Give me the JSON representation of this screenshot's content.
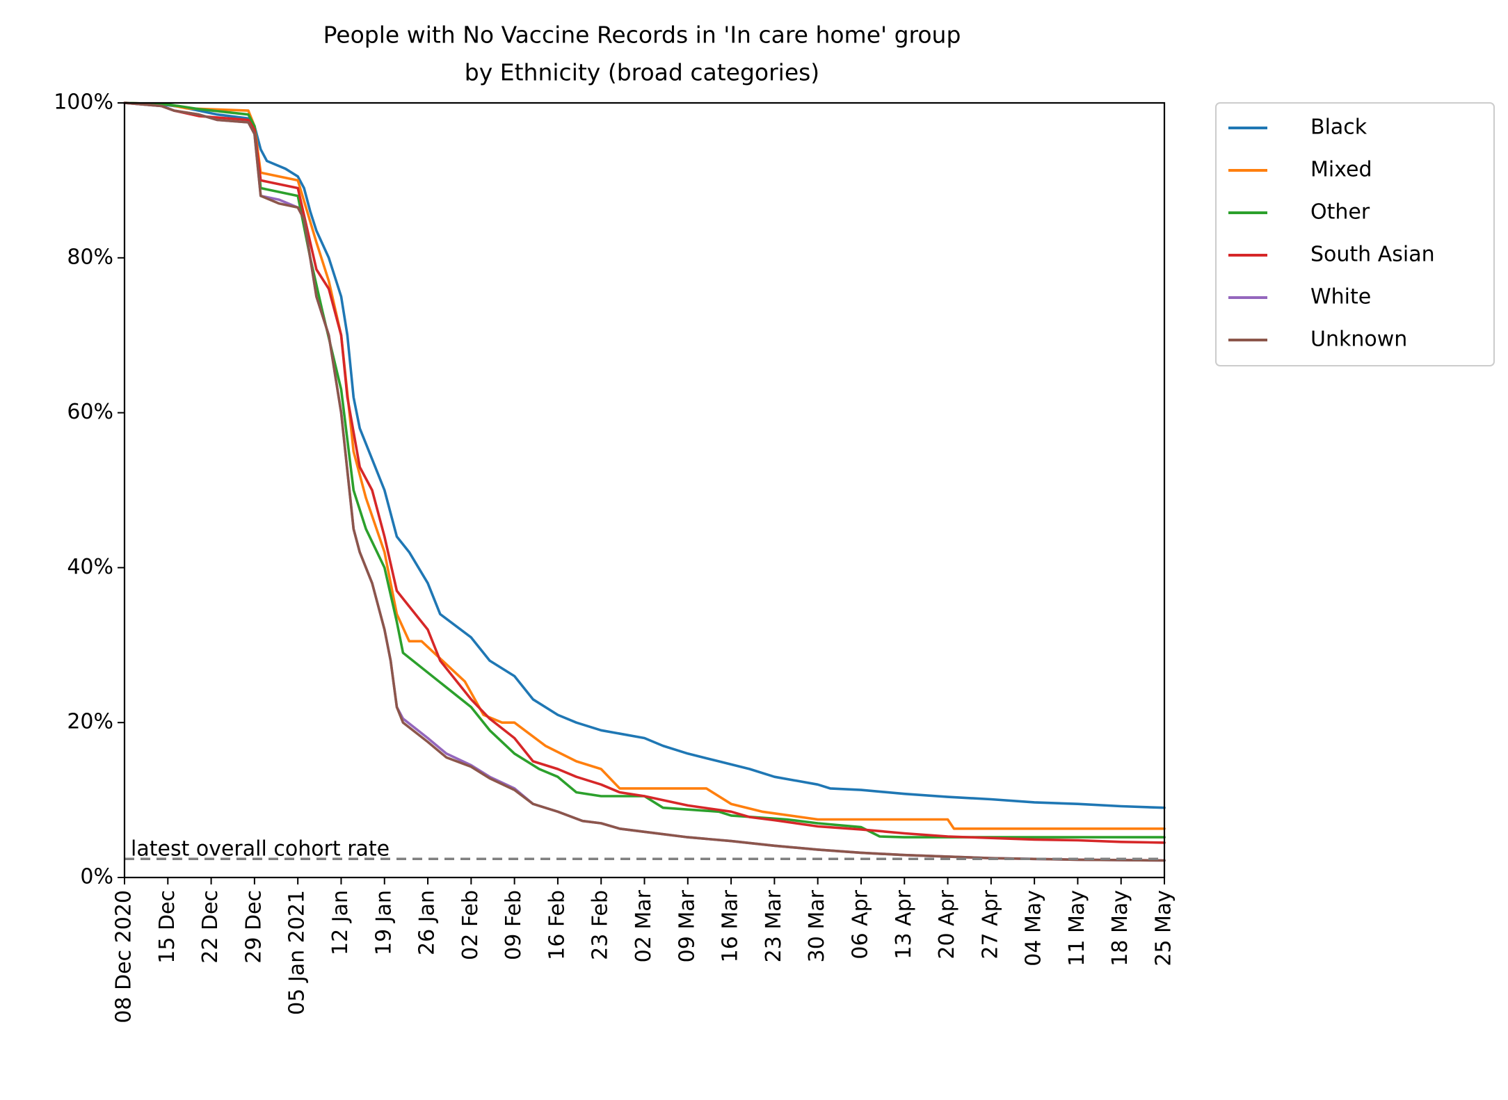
{
  "chart_data": {
    "type": "line",
    "title_lines": [
      "People with No Vaccine Records in 'In care home' group",
      "by Ethnicity (broad categories)"
    ],
    "xlabel": "",
    "ylabel": "",
    "ylim": [
      0,
      100
    ],
    "y_ticks": [
      0,
      20,
      40,
      60,
      80,
      100
    ],
    "y_tick_labels": [
      "0%",
      "20%",
      "40%",
      "60%",
      "80%",
      "100%"
    ],
    "xlim": [
      "2020-12-08",
      "2021-05-25"
    ],
    "x_tick_dates": [
      "2020-12-08",
      "2020-12-15",
      "2020-12-22",
      "2020-12-29",
      "2021-01-05",
      "2021-01-12",
      "2021-01-19",
      "2021-01-26",
      "2021-02-02",
      "2021-02-09",
      "2021-02-16",
      "2021-02-23",
      "2021-03-02",
      "2021-03-09",
      "2021-03-16",
      "2021-03-23",
      "2021-03-30",
      "2021-04-06",
      "2021-04-13",
      "2021-04-20",
      "2021-04-27",
      "2021-05-04",
      "2021-05-11",
      "2021-05-18",
      "2021-05-25"
    ],
    "x_tick_labels": [
      "08 Dec 2020",
      "15 Dec",
      "22 Dec",
      "29 Dec",
      "05 Jan 2021",
      "12 Jan",
      "19 Jan",
      "26 Jan",
      "02 Feb",
      "09 Feb",
      "16 Feb",
      "23 Feb",
      "02 Mar",
      "09 Mar",
      "16 Mar",
      "23 Mar",
      "30 Mar",
      "06 Apr",
      "13 Apr",
      "20 Apr",
      "27 Apr",
      "04 May",
      "11 May",
      "18 May",
      "25 May"
    ],
    "grid": false,
    "legend_placement": "outside-top-right",
    "reference_line": {
      "label": "latest overall cohort rate",
      "value": 2.4,
      "color": "#808080",
      "style": "dashed"
    },
    "series": [
      {
        "name": "Black",
        "color": "#1f77b4",
        "points": [
          [
            "2020-12-08",
            100
          ],
          [
            "2020-12-14",
            99.8
          ],
          [
            "2020-12-17",
            99.5
          ],
          [
            "2020-12-20",
            99
          ],
          [
            "2020-12-23",
            98.5
          ],
          [
            "2020-12-28",
            98
          ],
          [
            "2020-12-29",
            97
          ],
          [
            "2020-12-30",
            94
          ],
          [
            "2020-12-31",
            92.5
          ],
          [
            "2021-01-03",
            91.5
          ],
          [
            "2021-01-05",
            90.5
          ],
          [
            "2021-01-06",
            89
          ],
          [
            "2021-01-07",
            86
          ],
          [
            "2021-01-08",
            83.5
          ],
          [
            "2021-01-10",
            80
          ],
          [
            "2021-01-12",
            75
          ],
          [
            "2021-01-13",
            70
          ],
          [
            "2021-01-14",
            62
          ],
          [
            "2021-01-15",
            58
          ],
          [
            "2021-01-17",
            54
          ],
          [
            "2021-01-19",
            50
          ],
          [
            "2021-01-21",
            44
          ],
          [
            "2021-01-23",
            42
          ],
          [
            "2021-01-26",
            38
          ],
          [
            "2021-01-28",
            34
          ],
          [
            "2021-02-02",
            31
          ],
          [
            "2021-02-05",
            28
          ],
          [
            "2021-02-09",
            26
          ],
          [
            "2021-02-12",
            23
          ],
          [
            "2021-02-16",
            21
          ],
          [
            "2021-02-19",
            20
          ],
          [
            "2021-02-23",
            19
          ],
          [
            "2021-03-02",
            18
          ],
          [
            "2021-03-05",
            17
          ],
          [
            "2021-03-09",
            16
          ],
          [
            "2021-03-14",
            15
          ],
          [
            "2021-03-19",
            14
          ],
          [
            "2021-03-23",
            13
          ],
          [
            "2021-03-30",
            12
          ],
          [
            "2021-04-01",
            11.5
          ],
          [
            "2021-04-06",
            11.3
          ],
          [
            "2021-04-13",
            10.8
          ],
          [
            "2021-04-20",
            10.4
          ],
          [
            "2021-04-27",
            10.1
          ],
          [
            "2021-05-04",
            9.7
          ],
          [
            "2021-05-11",
            9.5
          ],
          [
            "2021-05-18",
            9.2
          ],
          [
            "2021-05-25",
            9.0
          ]
        ]
      },
      {
        "name": "Mixed",
        "color": "#ff7f0e",
        "points": [
          [
            "2020-12-08",
            100
          ],
          [
            "2020-12-15",
            99.8
          ],
          [
            "2020-12-18",
            99.3
          ],
          [
            "2020-12-28",
            99
          ],
          [
            "2020-12-29",
            97
          ],
          [
            "2020-12-30",
            91
          ],
          [
            "2021-01-05",
            90
          ],
          [
            "2021-01-08",
            82
          ],
          [
            "2021-01-10",
            77
          ],
          [
            "2021-01-12",
            70
          ],
          [
            "2021-01-14",
            55
          ],
          [
            "2021-01-16",
            49
          ],
          [
            "2021-01-19",
            42
          ],
          [
            "2021-01-21",
            34
          ],
          [
            "2021-01-23",
            30.5
          ],
          [
            "2021-01-25",
            30.5
          ],
          [
            "2021-02-01",
            25.3
          ],
          [
            "2021-02-04",
            21
          ],
          [
            "2021-02-07",
            20
          ],
          [
            "2021-02-09",
            20
          ],
          [
            "2021-02-14",
            17
          ],
          [
            "2021-02-19",
            15
          ],
          [
            "2021-02-23",
            14
          ],
          [
            "2021-02-26",
            11.5
          ],
          [
            "2021-03-12",
            11.5
          ],
          [
            "2021-03-16",
            9.5
          ],
          [
            "2021-03-21",
            8.5
          ],
          [
            "2021-03-30",
            7.5
          ],
          [
            "2021-04-20",
            7.5
          ],
          [
            "2021-04-21",
            6.3
          ],
          [
            "2021-05-25",
            6.3
          ]
        ]
      },
      {
        "name": "Other",
        "color": "#2ca02c",
        "points": [
          [
            "2020-12-08",
            100
          ],
          [
            "2020-12-15",
            99.8
          ],
          [
            "2020-12-20",
            99.2
          ],
          [
            "2020-12-28",
            98.5
          ],
          [
            "2020-12-29",
            97
          ],
          [
            "2020-12-30",
            89
          ],
          [
            "2021-01-05",
            88
          ],
          [
            "2021-01-07",
            80
          ],
          [
            "2021-01-09",
            73
          ],
          [
            "2021-01-12",
            63
          ],
          [
            "2021-01-14",
            50
          ],
          [
            "2021-01-16",
            45
          ],
          [
            "2021-01-19",
            40
          ],
          [
            "2021-01-21",
            33
          ],
          [
            "2021-01-22",
            29
          ],
          [
            "2021-02-02",
            22
          ],
          [
            "2021-02-05",
            19
          ],
          [
            "2021-02-09",
            16
          ],
          [
            "2021-02-13",
            14
          ],
          [
            "2021-02-16",
            13
          ],
          [
            "2021-02-19",
            11
          ],
          [
            "2021-02-23",
            10.5
          ],
          [
            "2021-03-02",
            10.5
          ],
          [
            "2021-03-05",
            9
          ],
          [
            "2021-03-14",
            8.5
          ],
          [
            "2021-03-16",
            8
          ],
          [
            "2021-03-25",
            7.5
          ],
          [
            "2021-03-30",
            7
          ],
          [
            "2021-04-06",
            6.5
          ],
          [
            "2021-04-09",
            5.3
          ],
          [
            "2021-04-13",
            5.2
          ],
          [
            "2021-05-25",
            5.2
          ]
        ]
      },
      {
        "name": "South Asian",
        "color": "#d62728",
        "points": [
          [
            "2020-12-08",
            100
          ],
          [
            "2020-12-14",
            99.6
          ],
          [
            "2020-12-16",
            99
          ],
          [
            "2020-12-20",
            98.3
          ],
          [
            "2020-12-28",
            97.8
          ],
          [
            "2020-12-29",
            96.5
          ],
          [
            "2020-12-30",
            90
          ],
          [
            "2021-01-05",
            89
          ],
          [
            "2021-01-07",
            82
          ],
          [
            "2021-01-08",
            78.5
          ],
          [
            "2021-01-10",
            76
          ],
          [
            "2021-01-12",
            70
          ],
          [
            "2021-01-13",
            62
          ],
          [
            "2021-01-15",
            53
          ],
          [
            "2021-01-17",
            50
          ],
          [
            "2021-01-19",
            44
          ],
          [
            "2021-01-21",
            37
          ],
          [
            "2021-01-23",
            35
          ],
          [
            "2021-01-26",
            32
          ],
          [
            "2021-01-28",
            28
          ],
          [
            "2021-01-30",
            26
          ],
          [
            "2021-02-02",
            23
          ],
          [
            "2021-02-05",
            20.5
          ],
          [
            "2021-02-09",
            18
          ],
          [
            "2021-02-12",
            15
          ],
          [
            "2021-02-16",
            14
          ],
          [
            "2021-02-19",
            13
          ],
          [
            "2021-02-23",
            12
          ],
          [
            "2021-02-26",
            11
          ],
          [
            "2021-03-02",
            10.5
          ],
          [
            "2021-03-09",
            9.3
          ],
          [
            "2021-03-16",
            8.5
          ],
          [
            "2021-03-19",
            7.8
          ],
          [
            "2021-03-23",
            7.4
          ],
          [
            "2021-03-30",
            6.6
          ],
          [
            "2021-04-06",
            6.2
          ],
          [
            "2021-04-13",
            5.7
          ],
          [
            "2021-04-20",
            5.3
          ],
          [
            "2021-04-27",
            5.1
          ],
          [
            "2021-05-04",
            4.9
          ],
          [
            "2021-05-11",
            4.8
          ],
          [
            "2021-05-18",
            4.6
          ],
          [
            "2021-05-25",
            4.5
          ]
        ]
      },
      {
        "name": "White",
        "color": "#9467bd",
        "points": [
          [
            "2020-12-08",
            100
          ],
          [
            "2020-12-14",
            99.6
          ],
          [
            "2020-12-16",
            99
          ],
          [
            "2020-12-20",
            98.5
          ],
          [
            "2020-12-23",
            97.8
          ],
          [
            "2020-12-28",
            97.5
          ],
          [
            "2020-12-29",
            96
          ],
          [
            "2020-12-30",
            88
          ],
          [
            "2021-01-02",
            87.5
          ],
          [
            "2021-01-05",
            86.5
          ],
          [
            "2021-01-06",
            85
          ],
          [
            "2021-01-07",
            80
          ],
          [
            "2021-01-08",
            75
          ],
          [
            "2021-01-10",
            70
          ],
          [
            "2021-01-12",
            60
          ],
          [
            "2021-01-14",
            45
          ],
          [
            "2021-01-15",
            42
          ],
          [
            "2021-01-17",
            38
          ],
          [
            "2021-01-19",
            32
          ],
          [
            "2021-01-20",
            28
          ],
          [
            "2021-01-21",
            22
          ],
          [
            "2021-01-22",
            20.5
          ],
          [
            "2021-01-26",
            18
          ],
          [
            "2021-01-29",
            16
          ],
          [
            "2021-02-02",
            14.5
          ],
          [
            "2021-02-05",
            13
          ],
          [
            "2021-02-09",
            11.5
          ],
          [
            "2021-02-12",
            9.5
          ],
          [
            "2021-02-16",
            8.5
          ],
          [
            "2021-02-20",
            7.3
          ],
          [
            "2021-02-23",
            7
          ],
          [
            "2021-02-26",
            6.3
          ],
          [
            "2021-03-02",
            5.9
          ],
          [
            "2021-03-09",
            5.2
          ],
          [
            "2021-03-16",
            4.7
          ],
          [
            "2021-03-23",
            4.1
          ],
          [
            "2021-03-30",
            3.6
          ],
          [
            "2021-04-06",
            3.2
          ],
          [
            "2021-04-13",
            2.9
          ],
          [
            "2021-04-20",
            2.7
          ],
          [
            "2021-04-27",
            2.5
          ],
          [
            "2021-05-04",
            2.4
          ],
          [
            "2021-05-11",
            2.3
          ],
          [
            "2021-05-18",
            2.25
          ],
          [
            "2021-05-25",
            2.2
          ]
        ]
      },
      {
        "name": "Unknown",
        "color": "#8c564b",
        "points": [
          [
            "2020-12-08",
            100
          ],
          [
            "2020-12-14",
            99.6
          ],
          [
            "2020-12-16",
            99
          ],
          [
            "2020-12-20",
            98.5
          ],
          [
            "2020-12-23",
            97.8
          ],
          [
            "2020-12-28",
            97.5
          ],
          [
            "2020-12-29",
            96
          ],
          [
            "2020-12-30",
            88
          ],
          [
            "2021-01-02",
            87
          ],
          [
            "2021-01-05",
            86.5
          ],
          [
            "2021-01-06",
            85
          ],
          [
            "2021-01-07",
            80
          ],
          [
            "2021-01-08",
            75
          ],
          [
            "2021-01-10",
            70
          ],
          [
            "2021-01-12",
            60
          ],
          [
            "2021-01-14",
            45
          ],
          [
            "2021-01-15",
            42
          ],
          [
            "2021-01-17",
            38
          ],
          [
            "2021-01-19",
            32
          ],
          [
            "2021-01-20",
            28
          ],
          [
            "2021-01-21",
            22
          ],
          [
            "2021-01-22",
            20
          ],
          [
            "2021-01-26",
            17.5
          ],
          [
            "2021-01-29",
            15.5
          ],
          [
            "2021-02-02",
            14.3
          ],
          [
            "2021-02-05",
            12.8
          ],
          [
            "2021-02-09",
            11.3
          ],
          [
            "2021-02-12",
            9.5
          ],
          [
            "2021-02-16",
            8.5
          ],
          [
            "2021-02-20",
            7.3
          ],
          [
            "2021-02-23",
            7
          ],
          [
            "2021-02-26",
            6.3
          ],
          [
            "2021-03-02",
            5.9
          ],
          [
            "2021-03-09",
            5.2
          ],
          [
            "2021-03-16",
            4.7
          ],
          [
            "2021-03-23",
            4.1
          ],
          [
            "2021-03-30",
            3.6
          ],
          [
            "2021-04-06",
            3.2
          ],
          [
            "2021-04-13",
            2.9
          ],
          [
            "2021-04-20",
            2.7
          ],
          [
            "2021-04-27",
            2.5
          ],
          [
            "2021-05-04",
            2.4
          ],
          [
            "2021-05-11",
            2.3
          ],
          [
            "2021-05-18",
            2.25
          ],
          [
            "2021-05-25",
            2.2
          ]
        ]
      }
    ]
  }
}
